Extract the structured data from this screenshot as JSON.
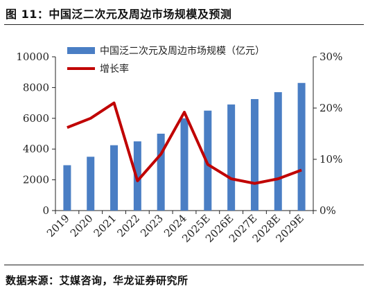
{
  "header": {
    "title": "图 11：中国泛二次元及周边市场规模及预测"
  },
  "footer": {
    "source": "数据来源：艾媒咨询，华龙证券研究所"
  },
  "colors": {
    "bar": "#4a7ec4",
    "line": "#c00000",
    "axis": "#222222"
  },
  "chart_data": {
    "type": "bar",
    "categories": [
      "2019",
      "2020",
      "2021",
      "2022",
      "2023",
      "2024",
      "2025E",
      "2026E",
      "2027E",
      "2028E",
      "2029E"
    ],
    "series": [
      {
        "name": "中国泛二次元及周边市场规模（亿元）",
        "type": "bar",
        "axis": "left",
        "values": [
          2950,
          3500,
          4250,
          4500,
          5000,
          6000,
          6500,
          6900,
          7250,
          7700,
          8300
        ]
      },
      {
        "name": "增长率",
        "type": "line",
        "axis": "right",
        "values": [
          16.2,
          18.0,
          21.0,
          5.8,
          11.0,
          19.2,
          9.0,
          6.2,
          5.3,
          6.2,
          7.9
        ]
      }
    ],
    "y_left": {
      "ylim": [
        0,
        10000
      ],
      "ticks": [
        "0",
        "2000",
        "4000",
        "6000",
        "8000",
        "10000"
      ]
    },
    "y_right": {
      "ylim": [
        0,
        30
      ],
      "ticks": [
        "0%",
        "10%",
        "20%",
        "30%"
      ]
    },
    "legend_position": "top-left",
    "grid": false
  }
}
